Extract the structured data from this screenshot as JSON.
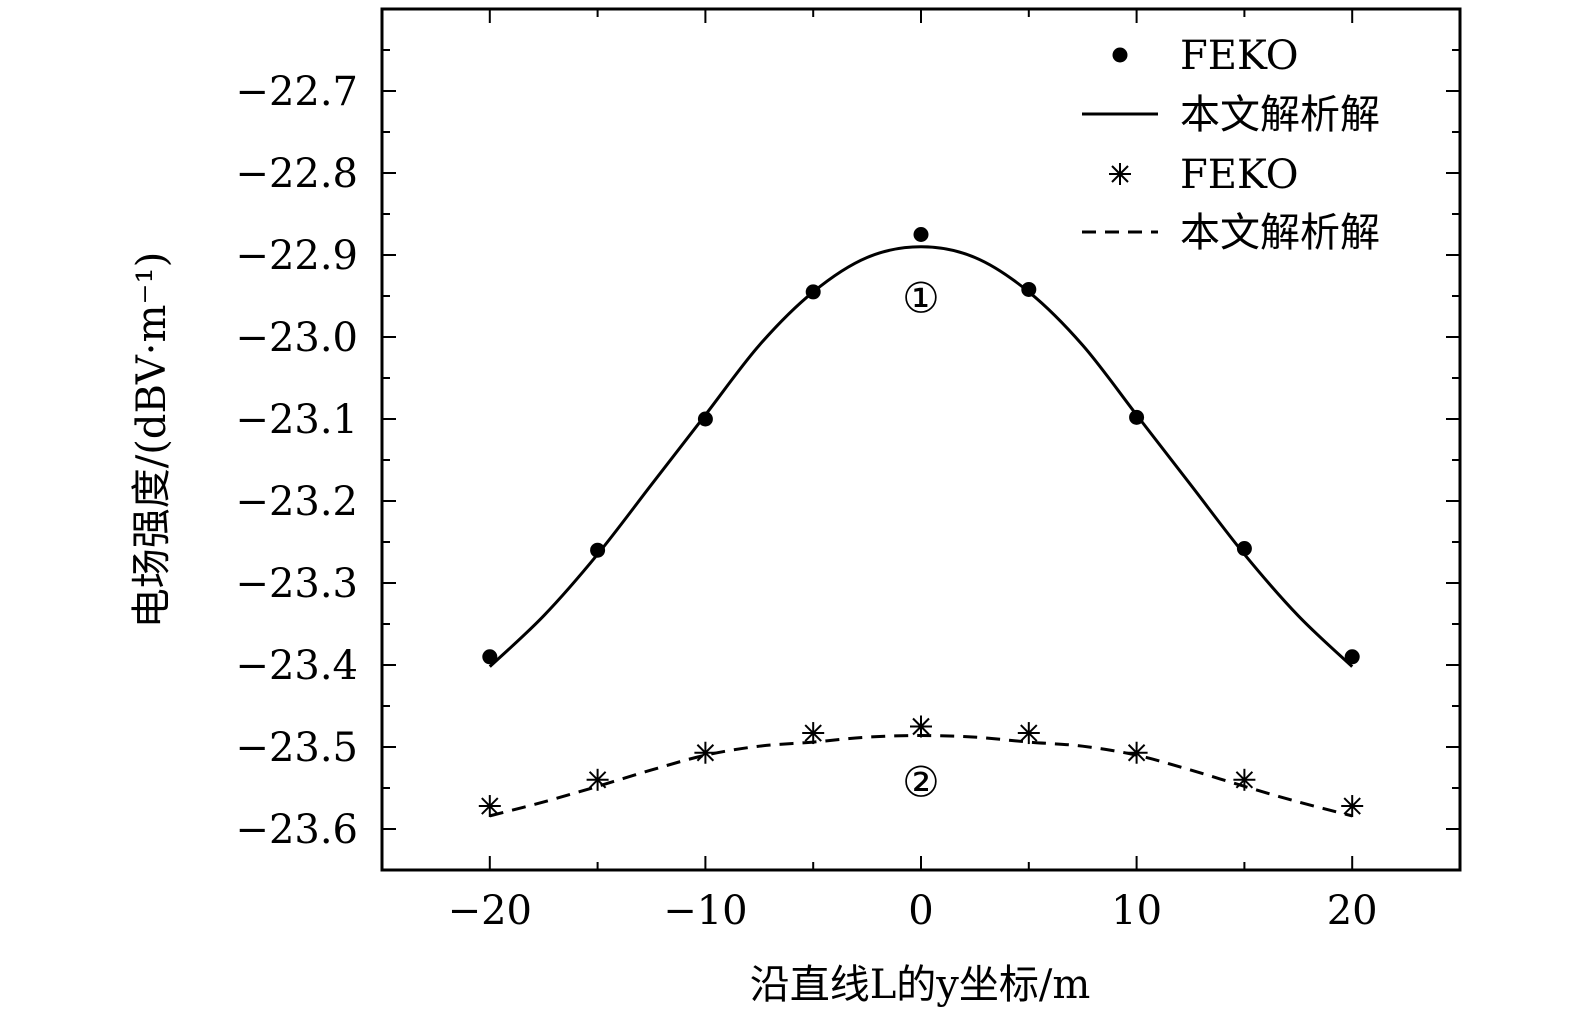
{
  "chart_data": {
    "type": "line",
    "title": "",
    "xlabel": "沿直线L的y坐标/m",
    "ylabel": "电场强度/(dBV·m⁻¹)",
    "xlim": [
      -25,
      25
    ],
    "ylim": [
      -23.65,
      -22.6
    ],
    "x_ticks": [
      -20,
      -10,
      0,
      10,
      20
    ],
    "x_tick_labels": [
      "−20",
      "−10",
      "0",
      "10",
      "20"
    ],
    "y_ticks": [
      -22.7,
      -22.8,
      -22.9,
      -23.0,
      -23.1,
      -23.2,
      -23.3,
      -23.4,
      -23.5,
      -23.6
    ],
    "y_tick_labels": [
      "−22.7",
      "−22.8",
      "−22.9",
      "−23.0",
      "−23.1",
      "−23.2",
      "−23.3",
      "−23.4",
      "−23.5",
      "−23.6"
    ],
    "grid": false,
    "legend_position": "top-right",
    "series": [
      {
        "name": "FEKO",
        "kind": "scatter",
        "marker": "dot",
        "x": [
          -20,
          -15,
          -10,
          -5,
          0,
          5,
          10,
          15,
          20
        ],
        "y": [
          -23.39,
          -23.26,
          -23.1,
          -22.945,
          -22.875,
          -22.942,
          -23.098,
          -23.258,
          -23.39
        ]
      },
      {
        "name": "本文解析解",
        "kind": "line",
        "style": "solid",
        "x": [
          -20,
          -17.5,
          -15,
          -12.5,
          -10,
          -7.5,
          -5,
          -2.5,
          0,
          2.5,
          5,
          7.5,
          10,
          12.5,
          15,
          17.5,
          20
        ],
        "y": [
          -23.402,
          -23.34,
          -23.265,
          -23.18,
          -23.095,
          -23.01,
          -22.945,
          -22.903,
          -22.89,
          -22.903,
          -22.945,
          -23.01,
          -23.095,
          -23.18,
          -23.265,
          -23.34,
          -23.402
        ]
      },
      {
        "name": "FEKO",
        "kind": "scatter",
        "marker": "asterisk",
        "x": [
          -20,
          -15,
          -10,
          -5,
          0,
          5,
          10,
          15,
          20
        ],
        "y": [
          -23.572,
          -23.54,
          -23.507,
          -23.483,
          -23.475,
          -23.483,
          -23.507,
          -23.54,
          -23.572
        ]
      },
      {
        "name": "本文解析解",
        "kind": "line",
        "style": "dashed",
        "x": [
          -20,
          -17.5,
          -15,
          -12.5,
          -10,
          -7.5,
          -5,
          -2.5,
          0,
          2.5,
          5,
          7.5,
          10,
          12.5,
          15,
          17.5,
          20
        ],
        "y": [
          -23.584,
          -23.567,
          -23.548,
          -23.528,
          -23.51,
          -23.499,
          -23.494,
          -23.488,
          -23.486,
          -23.488,
          -23.494,
          -23.499,
          -23.51,
          -23.528,
          -23.548,
          -23.567,
          -23.584
        ]
      }
    ],
    "annotations": [
      {
        "text": "①",
        "x": 0,
        "y": -22.952
      },
      {
        "text": "②",
        "x": 0,
        "y": -23.542
      }
    ]
  }
}
